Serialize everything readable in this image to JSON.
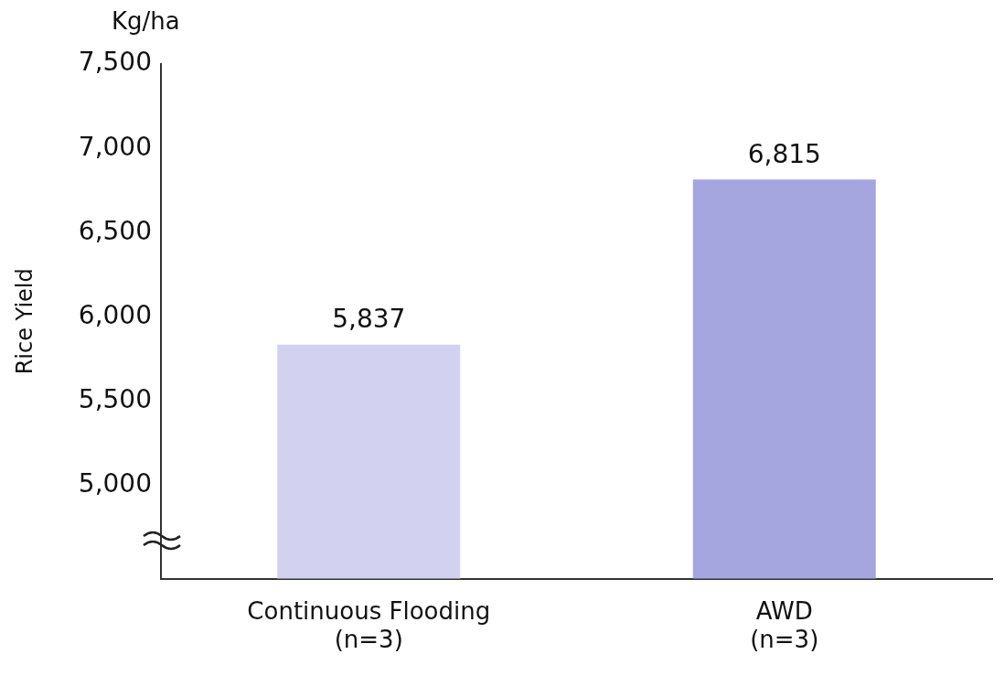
{
  "chart_data": {
    "type": "bar",
    "categories": [
      "Continuous Flooding\n(n=3)",
      "AWD\n(n=3)"
    ],
    "values": [
      5837,
      6815
    ],
    "colors": [
      "#d2d2f0",
      "#a5a5df"
    ],
    "ylabel": "Rice Yield",
    "annotations": [
      "Kg/ha"
    ],
    "ylim": [
      4450,
      7500
    ],
    "yticks": [
      {
        "value": 5000,
        "label": "5,000"
      },
      {
        "value": 5500,
        "label": "5,500"
      },
      {
        "value": 6000,
        "label": "6,000"
      },
      {
        "value": 6500,
        "label": "6,500"
      },
      {
        "value": 7000,
        "label": "7,000"
      },
      {
        "value": 7500,
        "label": "7,500"
      }
    ],
    "value_labels": [
      "5,837",
      "6,815"
    ],
    "grid": false,
    "legend": false
  }
}
